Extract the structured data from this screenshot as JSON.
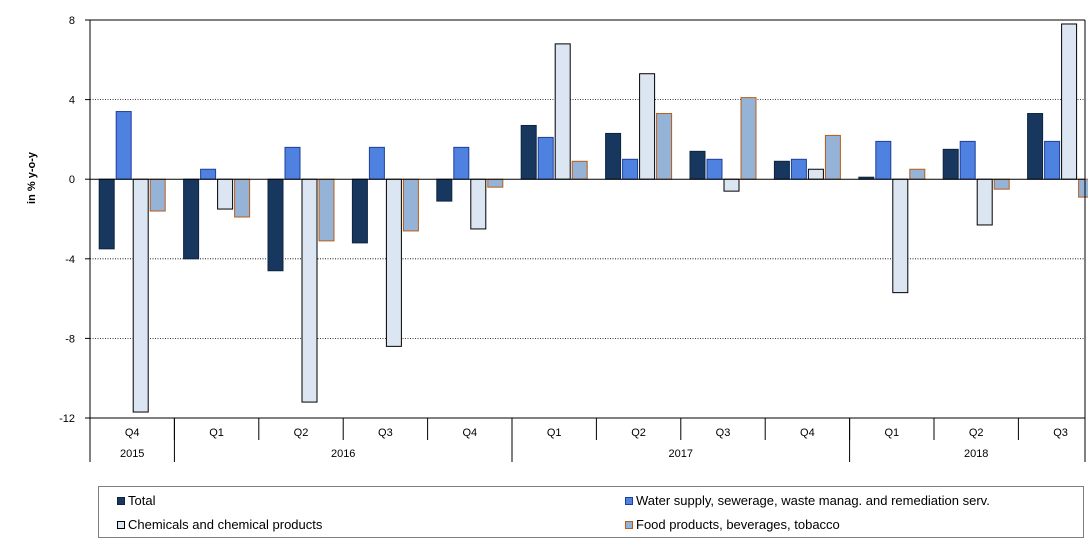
{
  "chart_data": {
    "type": "bar",
    "ylabel": "in % y-o-y",
    "ylim": [
      -12,
      8
    ],
    "yticks": [
      8,
      4,
      0,
      -4,
      -8,
      -12
    ],
    "grid": true,
    "legend_position": "bottom",
    "quarters": [
      "Q4",
      "Q1",
      "Q2",
      "Q3",
      "Q4",
      "Q1",
      "Q2",
      "Q3",
      "Q4",
      "Q1",
      "Q2",
      "Q3"
    ],
    "years": [
      {
        "label": "2015",
        "quarters": 1
      },
      {
        "label": "2016",
        "quarters": 4
      },
      {
        "label": "2017",
        "quarters": 4
      },
      {
        "label": "2018",
        "quarters": 3
      }
    ],
    "series": [
      {
        "name": "Total",
        "color": "#17375e",
        "stroke": "#0e2440",
        "values": [
          -3.5,
          -4.0,
          -4.6,
          -3.2,
          -1.1,
          2.7,
          2.3,
          1.4,
          0.9,
          0.1,
          1.5,
          3.3
        ]
      },
      {
        "name": "Water supply, sewerage, waste manag. and remediation serv.",
        "color": "#4f81e0",
        "stroke": "#1f3f9a",
        "values": [
          3.4,
          0.5,
          1.6,
          1.6,
          1.6,
          2.1,
          1.0,
          1.0,
          1.0,
          1.9,
          1.9,
          1.9
        ]
      },
      {
        "name": "Chemicals and chemical products",
        "color": "#dce6f2",
        "stroke": "#000000",
        "values": [
          -11.7,
          -1.5,
          -11.2,
          -8.4,
          -2.5,
          6.8,
          5.3,
          -0.6,
          0.5,
          -5.7,
          -2.3,
          7.8
        ]
      },
      {
        "name": "Food products, beverages, tobacco",
        "color": "#95b3d7",
        "stroke": "#b85c16",
        "values": [
          -1.6,
          -1.9,
          -3.1,
          -2.6,
          -0.4,
          0.9,
          3.3,
          4.1,
          2.2,
          0.5,
          -0.5,
          -0.9
        ]
      }
    ]
  }
}
